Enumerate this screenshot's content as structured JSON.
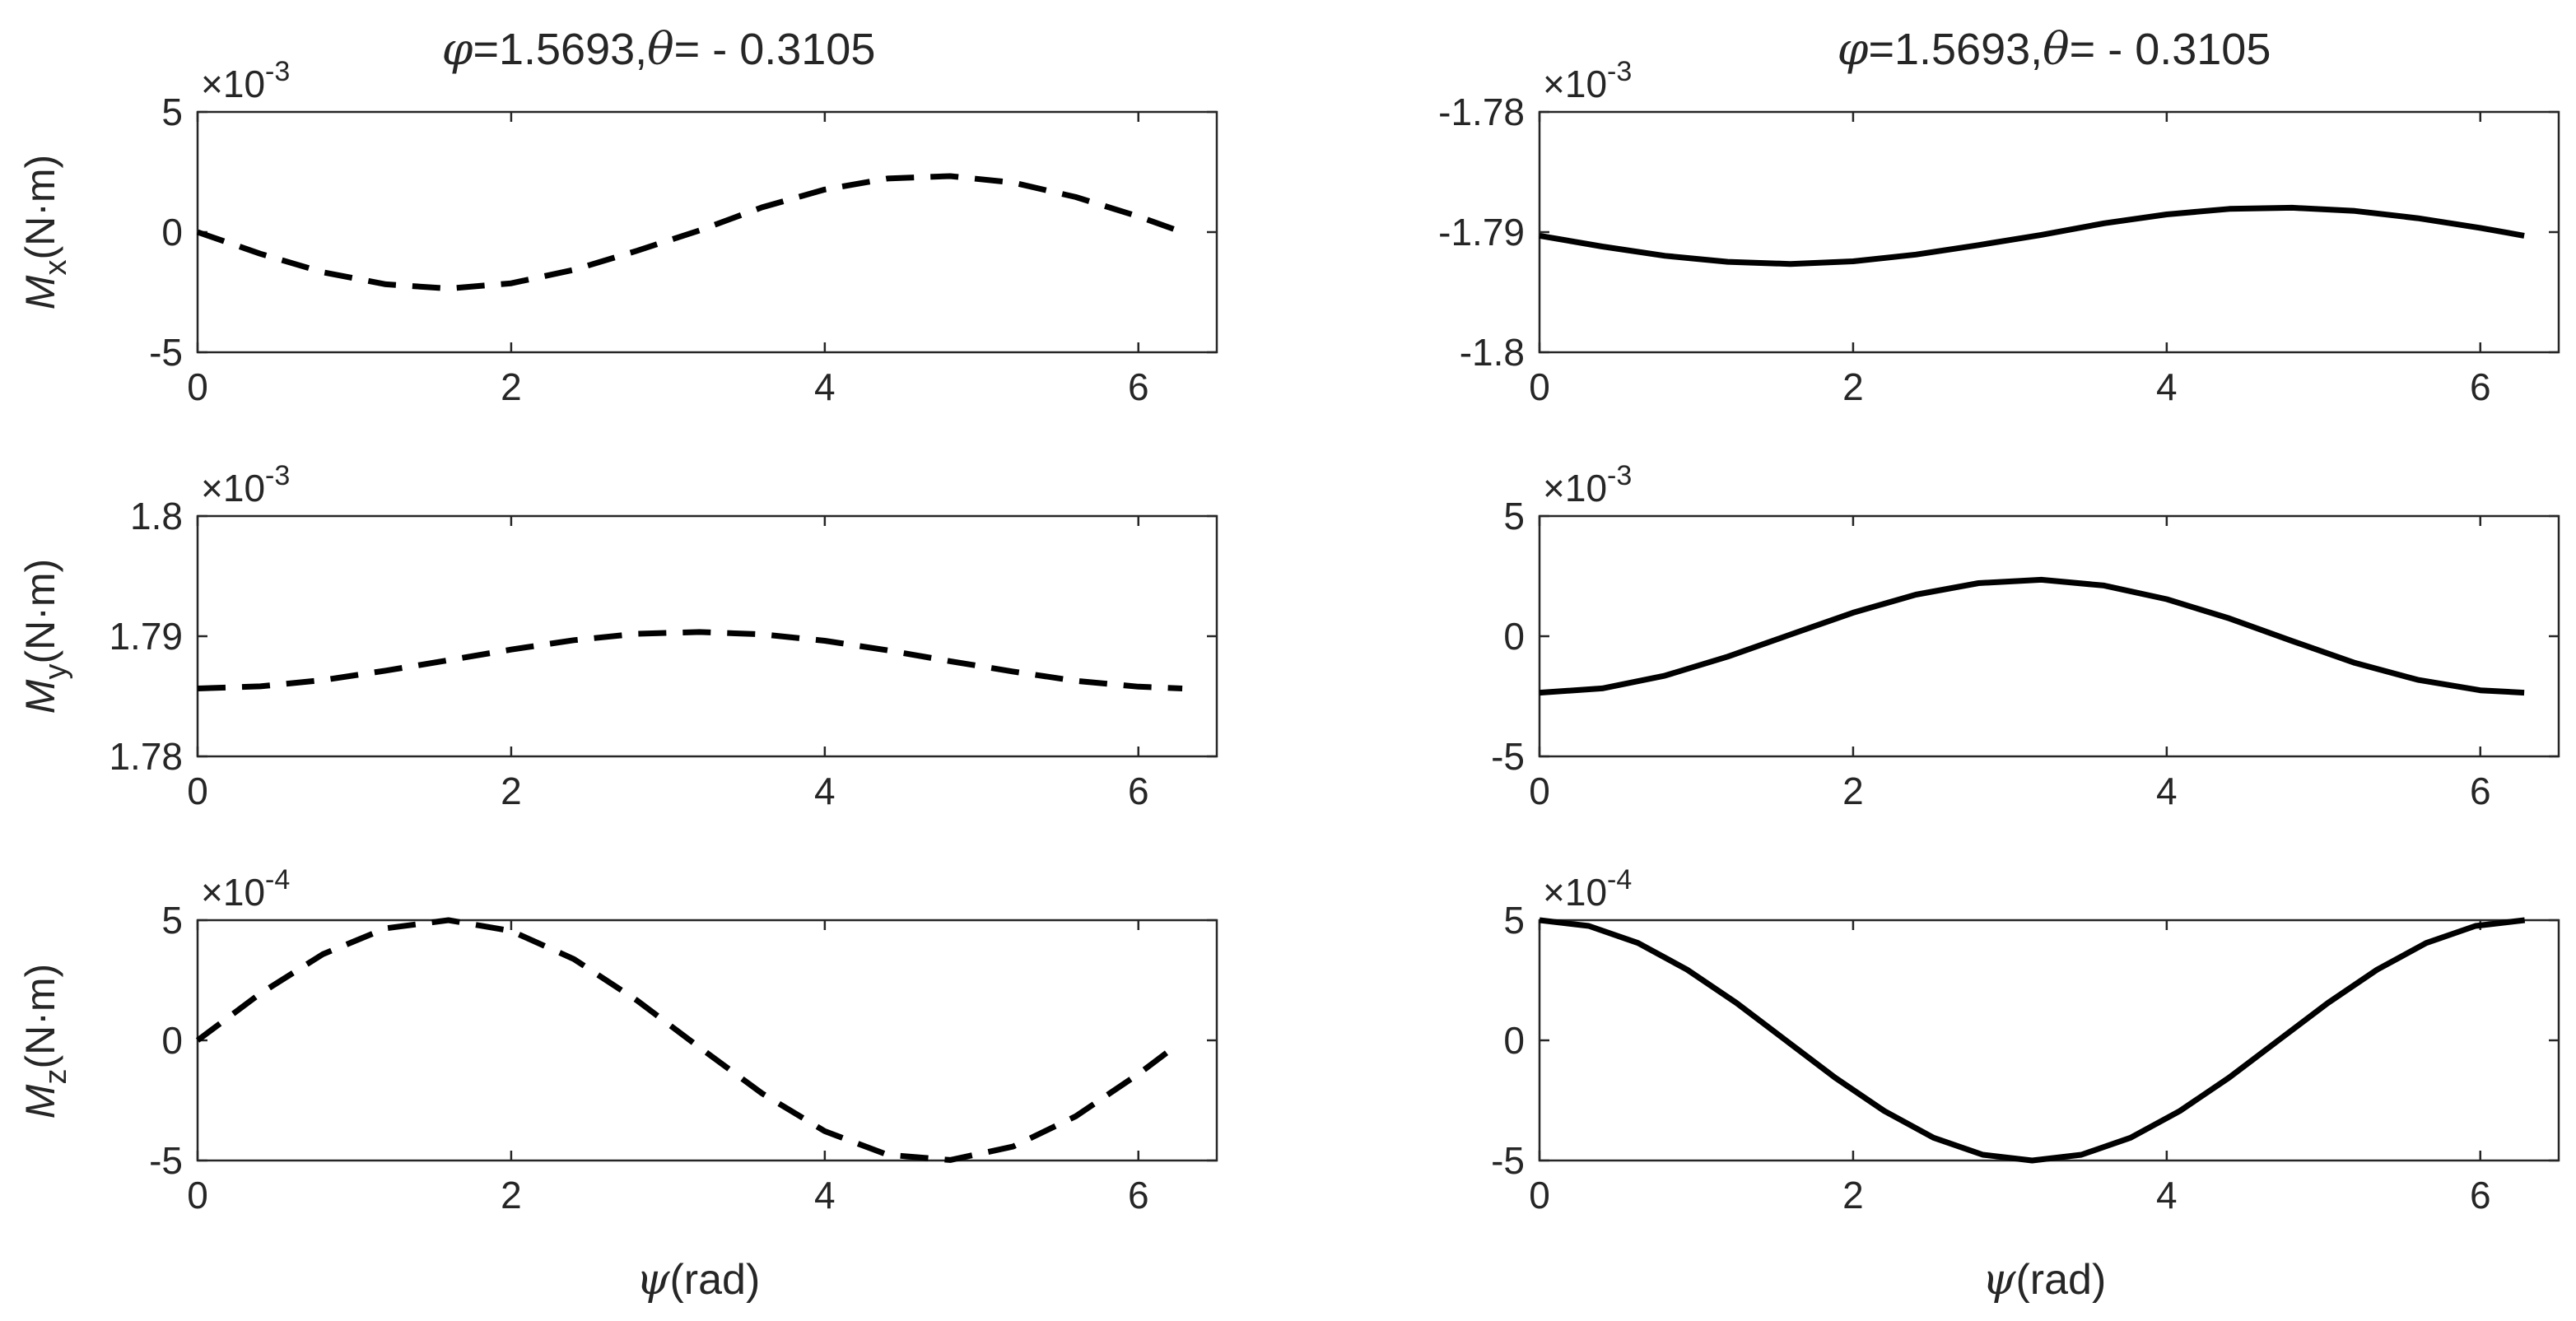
{
  "chart_data": [
    {
      "id": "p11",
      "type": "line",
      "title_phi": "φ",
      "title_mid": "=1.5693,",
      "title_theta": "θ",
      "title_val": "= - 0.3105",
      "ylabel": {
        "main": "M",
        "sub": "x",
        "unit": "(N·m)"
      },
      "exponent": {
        "base": "×10",
        "power": "-3"
      },
      "xlim": [
        0,
        6.5
      ],
      "ylim": [
        -5,
        5
      ],
      "xticks": [
        0,
        2,
        4,
        6
      ],
      "yticks": [
        {
          "v": 5,
          "label": "5"
        },
        {
          "v": 0,
          "label": "0"
        },
        {
          "v": -5,
          "label": "-5"
        }
      ],
      "line_style": "dashed",
      "x": [
        0,
        0.4,
        0.8,
        1.2,
        1.6,
        2.0,
        2.4,
        2.8,
        3.2,
        3.6,
        4.0,
        4.4,
        4.8,
        5.2,
        5.6,
        6.0,
        6.28
      ],
      "y": [
        0,
        -0.9,
        -1.67,
        -2.17,
        -2.35,
        -2.13,
        -1.57,
        -0.78,
        0.07,
        1.03,
        1.77,
        2.23,
        2.33,
        2.06,
        1.46,
        0.65,
        0
      ]
    },
    {
      "id": "p12",
      "type": "line",
      "title_phi": "φ",
      "title_mid": "=1.5693,",
      "title_theta": "θ",
      "title_val": "= - 0.3105",
      "ylabel": null,
      "exponent": {
        "base": "×10",
        "power": "-3"
      },
      "xlim": [
        0,
        6.5
      ],
      "ylim": [
        -1.8,
        -1.78
      ],
      "xticks": [
        0,
        2,
        4,
        6
      ],
      "yticks": [
        {
          "v": -1.78,
          "label": "-1.78"
        },
        {
          "v": -1.79,
          "label": "-1.79"
        },
        {
          "v": -1.8,
          "label": "-1.8"
        }
      ],
      "line_style": "solid",
      "x": [
        0,
        0.4,
        0.8,
        1.2,
        1.6,
        2.0,
        2.4,
        2.8,
        3.2,
        3.6,
        4.0,
        4.4,
        4.8,
        5.2,
        5.6,
        6.0,
        6.28
      ],
      "y": [
        -1.7903,
        -1.7912,
        -1.79197,
        -1.79247,
        -1.79265,
        -1.79243,
        -1.79187,
        -1.79108,
        -1.79023,
        -1.78927,
        -1.78853,
        -1.78807,
        -1.78797,
        -1.78824,
        -1.78884,
        -1.78965,
        -1.7903
      ]
    },
    {
      "id": "p21",
      "type": "line",
      "ylabel": {
        "main": "M",
        "sub": "y",
        "unit": "(N·m)"
      },
      "exponent": {
        "base": "×10",
        "power": "-3"
      },
      "xlim": [
        0,
        6.5
      ],
      "ylim": [
        1.78,
        1.8
      ],
      "xticks": [
        0,
        2,
        4,
        6
      ],
      "yticks": [
        {
          "v": 1.8,
          "label": "1.8"
        },
        {
          "v": 1.79,
          "label": "1.79"
        },
        {
          "v": 1.78,
          "label": "1.78"
        }
      ],
      "line_style": "dashed",
      "x": [
        0,
        0.4,
        0.8,
        1.2,
        1.6,
        2.0,
        2.4,
        2.8,
        3.2,
        3.6,
        4.0,
        4.4,
        4.8,
        5.2,
        5.6,
        6.0,
        6.28
      ],
      "y": [
        1.78565,
        1.78583,
        1.78635,
        1.78714,
        1.788,
        1.78889,
        1.78967,
        1.7902,
        1.79035,
        1.79016,
        1.78962,
        1.78883,
        1.78792,
        1.78706,
        1.78629,
        1.7858,
        1.78565
      ]
    },
    {
      "id": "p22",
      "type": "line",
      "ylabel": null,
      "exponent": {
        "base": "×10",
        "power": "-3"
      },
      "xlim": [
        0,
        6.5
      ],
      "ylim": [
        -5,
        5
      ],
      "xticks": [
        0,
        2,
        4,
        6
      ],
      "yticks": [
        {
          "v": 5,
          "label": "5"
        },
        {
          "v": 0,
          "label": "0"
        },
        {
          "v": -5,
          "label": "-5"
        }
      ],
      "line_style": "solid",
      "x": [
        0,
        0.4,
        0.8,
        1.2,
        1.6,
        2.0,
        2.4,
        2.8,
        3.2,
        3.6,
        4.0,
        4.4,
        4.8,
        5.2,
        5.6,
        6.0,
        6.28
      ],
      "y": [
        -2.35,
        -2.17,
        -1.64,
        -0.85,
        0.07,
        0.98,
        1.73,
        2.21,
        2.35,
        2.11,
        1.54,
        0.74,
        -0.2,
        -1.11,
        -1.81,
        -2.25,
        -2.35
      ]
    },
    {
      "id": "p31",
      "type": "line",
      "ylabel": {
        "main": "M",
        "sub": "z",
        "unit": "(N·m)"
      },
      "exponent": {
        "base": "×10",
        "power": "-4"
      },
      "xlim": [
        0,
        6.5
      ],
      "ylim": [
        -5,
        5
      ],
      "xticks": [
        0,
        2,
        4,
        6
      ],
      "yticks": [
        {
          "v": 5,
          "label": "5"
        },
        {
          "v": 0,
          "label": "0"
        },
        {
          "v": -5,
          "label": "-5"
        }
      ],
      "line_style": "dashed",
      "x": [
        0,
        0.4,
        0.8,
        1.2,
        1.6,
        2.0,
        2.4,
        2.8,
        3.2,
        3.6,
        4.0,
        4.4,
        4.8,
        5.2,
        5.6,
        6.0,
        6.2
      ],
      "y": [
        0,
        1.95,
        3.59,
        4.66,
        5.0,
        4.55,
        3.38,
        1.67,
        -0.29,
        -2.21,
        -3.78,
        -4.76,
        -4.98,
        -4.42,
        -3.16,
        -1.4,
        -0.42
      ]
    },
    {
      "id": "p32",
      "type": "line",
      "xlabel_greek": "ψ",
      "xlabel_unit": "(rad)",
      "ylabel": null,
      "exponent": {
        "base": "×10",
        "power": "-4"
      },
      "xlim": [
        0,
        6.5
      ],
      "ylim": [
        -5,
        5
      ],
      "xticks": [
        0,
        2,
        4,
        6
      ],
      "yticks": [
        {
          "v": 5,
          "label": "5"
        },
        {
          "v": 0,
          "label": "0"
        },
        {
          "v": -5,
          "label": "-5"
        }
      ],
      "line_style": "solid",
      "x": [
        0,
        0.314,
        0.628,
        0.942,
        1.257,
        1.571,
        1.885,
        2.199,
        2.513,
        2.827,
        3.142,
        3.456,
        3.77,
        4.084,
        4.398,
        4.712,
        5.027,
        5.341,
        5.655,
        5.969,
        6.283
      ],
      "y": [
        5.0,
        4.76,
        4.05,
        2.94,
        1.55,
        0,
        -1.55,
        -2.94,
        -4.05,
        -4.76,
        -5.0,
        -4.76,
        -4.05,
        -2.94,
        -1.55,
        0,
        1.55,
        2.94,
        4.05,
        4.76,
        5.0
      ]
    },
    {
      "id": "p31x",
      "xlabel_greek": "ψ",
      "xlabel_unit": "(rad)"
    }
  ]
}
